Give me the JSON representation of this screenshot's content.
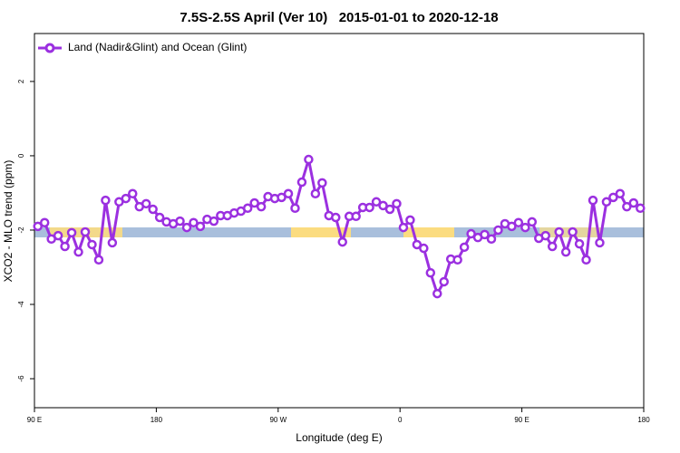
{
  "chart_data": {
    "type": "line",
    "title": "7.5S-2.5S April (Ver 10)   2015-01-01 to 2020-12-18",
    "xlabel": "Longitude (deg E)",
    "ylabel": "XCO2 - MLO trend (ppm)",
    "xlim": [
      90,
      540
    ],
    "ylim": [
      -6.78,
      3.29
    ],
    "xticks": [
      {
        "value": 90,
        "label": "90 E"
      },
      180,
      {
        "value": 270,
        "label": "90 W"
      },
      {
        "value": 360,
        "label": "0"
      },
      {
        "value": 450,
        "label": "90 E"
      },
      {
        "value": 540,
        "label": "180"
      }
    ],
    "yticks": [
      -6,
      -4,
      -2,
      0,
      2
    ],
    "legend": "top-left",
    "x": [
      92.5,
      97.5,
      102.5,
      107.5,
      112.5,
      117.5,
      122.5,
      127.5,
      132.5,
      137.5,
      142.5,
      147.5,
      152.5,
      157.5,
      162.5,
      167.5,
      172.5,
      177.5,
      182.5,
      187.5,
      192.5,
      197.5,
      202.5,
      207.5,
      212.5,
      217.5,
      222.5,
      227.5,
      232.5,
      237.5,
      242.5,
      247.5,
      252.5,
      257.5,
      262.5,
      267.5,
      272.5,
      277.5,
      282.5,
      287.5,
      292.5,
      297.5,
      302.5,
      307.5,
      312.5,
      317.5,
      322.5,
      327.5,
      332.5,
      337.5,
      342.5,
      347.5,
      352.5,
      357.5,
      362.5,
      367.5,
      372.5,
      377.5,
      382.5,
      387.5,
      392.5,
      397.5,
      402.5,
      407.5,
      412.5,
      417.5,
      422.5,
      427.5,
      432.5,
      437.5,
      442.5,
      447.5,
      452.5,
      457.5,
      462.5,
      467.5,
      472.5,
      477.5,
      482.5,
      487.5,
      492.5,
      497.5,
      502.5,
      507.5,
      512.5,
      517.5,
      522.5,
      527.5,
      532.5,
      537.5
    ],
    "series": [
      {
        "name": "Land (Nadir&Glint) and Ocean (Glint)",
        "color": "#9b30e0",
        "values": [
          -1.9,
          -1.8,
          -2.24,
          -2.15,
          -2.44,
          -2.07,
          -2.59,
          -2.05,
          -2.39,
          -2.8,
          -1.2,
          -2.34,
          -1.24,
          -1.15,
          -1.02,
          -1.37,
          -1.29,
          -1.44,
          -1.66,
          -1.78,
          -1.83,
          -1.76,
          -1.93,
          -1.8,
          -1.9,
          -1.71,
          -1.76,
          -1.61,
          -1.61,
          -1.54,
          -1.49,
          -1.41,
          -1.27,
          -1.37,
          -1.1,
          -1.15,
          -1.12,
          -1.02,
          -1.41,
          -0.71,
          -0.1,
          -1.02,
          -0.73,
          -1.61,
          -1.66,
          -2.32,
          -1.63,
          -1.63,
          -1.39,
          -1.39,
          -1.24,
          -1.34,
          -1.44,
          -1.29,
          -1.93,
          -1.73,
          -2.39,
          -2.49,
          -3.15,
          -3.71,
          -3.39,
          -2.78,
          -2.8,
          -2.46,
          -2.1,
          -2.2,
          -2.12,
          -2.24,
          -2.0,
          -1.83,
          -1.9,
          -1.8,
          -1.93,
          -1.78,
          -2.22,
          -2.15,
          -2.44,
          -2.05,
          -2.59,
          -2.05,
          -2.37,
          -2.8,
          -1.2,
          -2.34,
          -1.24,
          -1.12,
          -1.02,
          -1.37,
          -1.27,
          -1.41
        ]
      }
    ]
  }
}
